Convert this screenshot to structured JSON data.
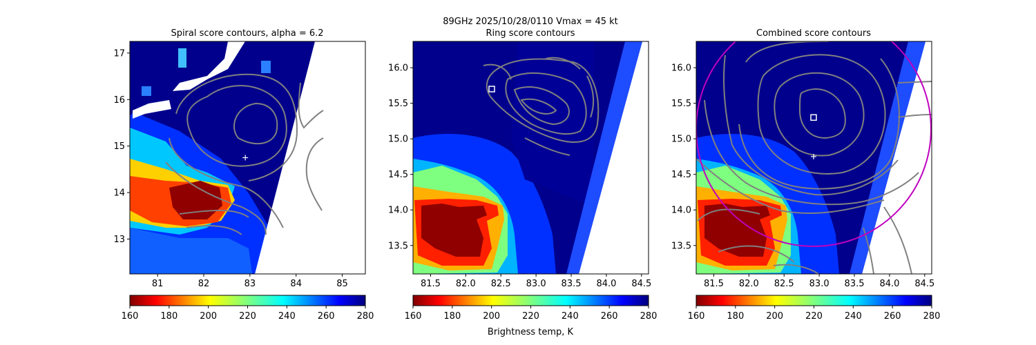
{
  "figure": {
    "suptitle_line1": "89GHz  2025/10/28/0110    Vmax = 45 kt",
    "colorbar_label": "Brightness temp, K"
  },
  "colors": {
    "contour": "#808080",
    "fix_circle": "#c000c0",
    "no_data": "#ffffff",
    "marker": "#ffffff"
  },
  "colormap": "jet_reversed",
  "chart_data": [
    {
      "type": "heatmap",
      "title": "Spiral score contours, alpha =  6.2",
      "xlim": [
        80.4,
        85.5
      ],
      "ylim": [
        12.25,
        17.25
      ],
      "xticks": [
        "81",
        "82",
        "83",
        "84",
        "85"
      ],
      "yticks": [
        "13",
        "14",
        "15",
        "16",
        "17"
      ],
      "value_range": [
        160,
        280
      ],
      "swath_edge": {
        "top_lon": 84.0,
        "bottom_lon": 83.0
      },
      "markers": [
        {
          "kind": "plus",
          "lon": 82.9,
          "lat": 14.75
        }
      ],
      "colorbar_ticks": [
        "160",
        "180",
        "200",
        "220",
        "240",
        "260",
        "280"
      ]
    },
    {
      "type": "heatmap",
      "title": "Ring score contours",
      "xlim": [
        81.25,
        84.6
      ],
      "ylim": [
        13.1,
        16.37
      ],
      "xticks": [
        "81.5",
        "82.0",
        "82.5",
        "83.0",
        "83.5",
        "84.0",
        "84.5"
      ],
      "yticks": [
        "13.5",
        "14.0",
        "14.5",
        "15.0",
        "15.5",
        "16.0"
      ],
      "value_range": [
        160,
        280
      ],
      "markers": [
        {
          "kind": "square",
          "lon": 82.37,
          "lat": 15.7
        }
      ],
      "colorbar_ticks": [
        "160",
        "180",
        "200",
        "220",
        "240",
        "260",
        "280"
      ]
    },
    {
      "type": "heatmap",
      "title": "Combined score contours",
      "xlim": [
        81.25,
        84.6
      ],
      "ylim": [
        13.1,
        16.37
      ],
      "xticks": [
        "81.5",
        "82.0",
        "82.5",
        "83.0",
        "83.5",
        "84.0",
        "84.5"
      ],
      "yticks": [
        "13.5",
        "14.0",
        "14.5",
        "15.0",
        "15.5",
        "16.0"
      ],
      "value_range": [
        160,
        280
      ],
      "markers": [
        {
          "kind": "square",
          "lon": 82.92,
          "lat": 15.3
        },
        {
          "kind": "plus",
          "lon": 82.92,
          "lat": 14.75
        }
      ],
      "circle": {
        "center_lon": 82.92,
        "center_lat": 15.3,
        "radius_deg": 1.8
      },
      "colorbar_ticks": [
        "160",
        "180",
        "200",
        "220",
        "240",
        "260",
        "280"
      ]
    }
  ]
}
